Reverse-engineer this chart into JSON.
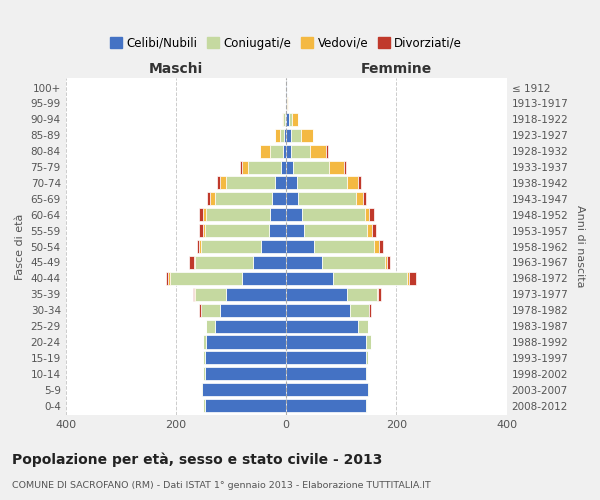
{
  "age_groups": [
    "0-4",
    "5-9",
    "10-14",
    "15-19",
    "20-24",
    "25-29",
    "30-34",
    "35-39",
    "40-44",
    "45-49",
    "50-54",
    "55-59",
    "60-64",
    "65-69",
    "70-74",
    "75-79",
    "80-84",
    "85-89",
    "90-94",
    "95-99",
    "100+"
  ],
  "birth_years": [
    "2008-2012",
    "2003-2007",
    "1998-2002",
    "1993-1997",
    "1988-1992",
    "1983-1987",
    "1978-1982",
    "1973-1977",
    "1968-1972",
    "1963-1967",
    "1958-1962",
    "1953-1957",
    "1948-1952",
    "1943-1947",
    "1938-1942",
    "1933-1937",
    "1928-1932",
    "1923-1927",
    "1918-1922",
    "1913-1917",
    "≤ 1912"
  ],
  "colors": {
    "celibi": "#4472c4",
    "coniugati": "#c5d9a0",
    "vedovi": "#f4b942",
    "divorziati": "#c0392b"
  },
  "males": {
    "celibi": [
      148,
      152,
      148,
      148,
      145,
      130,
      120,
      110,
      80,
      60,
      45,
      32,
      30,
      25,
      20,
      10,
      5,
      4,
      2,
      1,
      1
    ],
    "coniugati": [
      2,
      2,
      2,
      2,
      5,
      15,
      35,
      55,
      130,
      105,
      110,
      115,
      115,
      105,
      90,
      60,
      25,
      8,
      3,
      0,
      0
    ],
    "vedovi": [
      0,
      0,
      0,
      0,
      0,
      0,
      0,
      2,
      5,
      3,
      3,
      3,
      5,
      8,
      10,
      10,
      18,
      8,
      2,
      0,
      0
    ],
    "divorziati": [
      0,
      0,
      0,
      0,
      0,
      0,
      3,
      2,
      3,
      8,
      3,
      8,
      8,
      5,
      5,
      3,
      0,
      0,
      0,
      0,
      0
    ]
  },
  "females": {
    "celibi": [
      145,
      148,
      145,
      145,
      145,
      130,
      115,
      110,
      85,
      65,
      50,
      32,
      28,
      22,
      20,
      12,
      8,
      8,
      5,
      2,
      1
    ],
    "coniugati": [
      2,
      2,
      2,
      3,
      8,
      18,
      35,
      55,
      135,
      115,
      110,
      115,
      115,
      105,
      90,
      65,
      35,
      18,
      5,
      0,
      0
    ],
    "vedovi": [
      0,
      0,
      0,
      0,
      0,
      0,
      0,
      2,
      3,
      3,
      8,
      8,
      8,
      12,
      20,
      28,
      30,
      22,
      12,
      1,
      0
    ],
    "divorziati": [
      0,
      0,
      0,
      0,
      0,
      0,
      3,
      5,
      12,
      5,
      8,
      8,
      8,
      5,
      5,
      3,
      3,
      0,
      0,
      0,
      0
    ]
  },
  "title": "Popolazione per età, sesso e stato civile - 2013",
  "subtitle": "COMUNE DI SACROFANO (RM) - Dati ISTAT 1° gennaio 2013 - Elaborazione TUTTITALIA.IT",
  "xlabel_left": "Maschi",
  "xlabel_right": "Femmine",
  "ylabel_left": "Fasce di età",
  "ylabel_right": "Anni di nascita",
  "xlim": 400,
  "legend_labels": [
    "Celibi/Nubili",
    "Coniugati/e",
    "Vedovi/e",
    "Divorziati/e"
  ],
  "background_color": "#f0f0f0",
  "plot_bg_color": "#ffffff",
  "grid_color": "#cccccc"
}
